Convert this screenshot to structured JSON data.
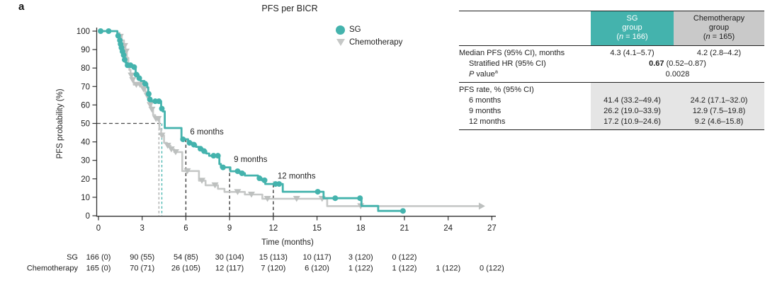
{
  "panel_label": "a",
  "colors": {
    "sg_teal": "#44b3ad",
    "chemo_gray": "#c6c8c7",
    "chemo_censor_gray": "#bdc0bf",
    "sg_header_bg": "#44b3ad",
    "chemo_header_bg": "#c9c9c9",
    "rate_shading_bg": "#e5e5e5",
    "dashed_line": "#3c3c3c",
    "median_dash_gray": "#a5a7a6"
  },
  "chart_data": {
    "type": "line",
    "subtype": "kaplan-meier-step",
    "title": "PFS per BICR",
    "xlabel": "Time (months)",
    "ylabel": "PFS probability (%)",
    "xlim": [
      0,
      27
    ],
    "ylim": [
      0,
      100
    ],
    "xticks": [
      0,
      3,
      6,
      9,
      12,
      15,
      18,
      21,
      24,
      27
    ],
    "yticks": [
      0,
      10,
      20,
      30,
      40,
      50,
      60,
      70,
      80,
      90,
      100
    ],
    "grid": false,
    "legend_position": "top-right-inside",
    "series": [
      {
        "name": "SG",
        "color": "#44b3ad",
        "marker": "circle",
        "censor_color": "#44b3ad",
        "median_months": 4.3,
        "end_arrow": false,
        "steps": [
          [
            0,
            100
          ],
          [
            1.3,
            100
          ],
          [
            1.3,
            97.5
          ],
          [
            1.45,
            97.5
          ],
          [
            1.45,
            95
          ],
          [
            1.5,
            95
          ],
          [
            1.5,
            93
          ],
          [
            1.55,
            93
          ],
          [
            1.55,
            91
          ],
          [
            1.62,
            91
          ],
          [
            1.62,
            89
          ],
          [
            1.7,
            89
          ],
          [
            1.7,
            87
          ],
          [
            1.78,
            87
          ],
          [
            1.78,
            84.5
          ],
          [
            1.85,
            84.5
          ],
          [
            1.85,
            83
          ],
          [
            1.95,
            83
          ],
          [
            1.95,
            81.5
          ],
          [
            2.4,
            81.5
          ],
          [
            2.4,
            80.5
          ],
          [
            2.55,
            80.5
          ],
          [
            2.55,
            76.5
          ],
          [
            2.75,
            76.5
          ],
          [
            2.75,
            74.5
          ],
          [
            2.9,
            74.5
          ],
          [
            2.9,
            73
          ],
          [
            3.15,
            73
          ],
          [
            3.15,
            71.5
          ],
          [
            3.35,
            71.5
          ],
          [
            3.35,
            69.5
          ],
          [
            3.42,
            69.5
          ],
          [
            3.42,
            66
          ],
          [
            3.5,
            66
          ],
          [
            3.5,
            63
          ],
          [
            3.58,
            63
          ],
          [
            3.58,
            62
          ],
          [
            4.3,
            62
          ],
          [
            4.3,
            58
          ],
          [
            4.42,
            58
          ],
          [
            4.42,
            56.5
          ],
          [
            4.55,
            56.5
          ],
          [
            4.55,
            47.5
          ],
          [
            5.7,
            47.5
          ],
          [
            5.7,
            41.4
          ],
          [
            6.15,
            41.4
          ],
          [
            6.15,
            39.5
          ],
          [
            6.45,
            39.5
          ],
          [
            6.45,
            38.5
          ],
          [
            6.7,
            38.5
          ],
          [
            6.7,
            37.3
          ],
          [
            6.9,
            37.3
          ],
          [
            6.9,
            36.3
          ],
          [
            7.15,
            36.3
          ],
          [
            7.15,
            35
          ],
          [
            7.4,
            35
          ],
          [
            7.4,
            33.7
          ],
          [
            7.6,
            33.7
          ],
          [
            7.6,
            32.5
          ],
          [
            8.3,
            32.5
          ],
          [
            8.3,
            28
          ],
          [
            8.4,
            28
          ],
          [
            8.4,
            26.2
          ],
          [
            9.05,
            26.2
          ],
          [
            9.05,
            24.1
          ],
          [
            9.7,
            24.1
          ],
          [
            9.7,
            23
          ],
          [
            10.05,
            23
          ],
          [
            10.05,
            21.8
          ],
          [
            10.95,
            21.8
          ],
          [
            10.95,
            20.3
          ],
          [
            11.2,
            20.3
          ],
          [
            11.2,
            19.2
          ],
          [
            11.45,
            19.2
          ],
          [
            11.45,
            17.2
          ],
          [
            12.65,
            17.2
          ],
          [
            12.65,
            13
          ],
          [
            15.45,
            13
          ],
          [
            15.45,
            9.5
          ],
          [
            18.05,
            9.5
          ],
          [
            18.05,
            5.3
          ],
          [
            19.2,
            5.3
          ],
          [
            19.2,
            2.6
          ],
          [
            20.95,
            2.6
          ]
        ],
        "censor_marks": [
          [
            0.15,
            100
          ],
          [
            0.7,
            100
          ],
          [
            1.35,
            97.5
          ],
          [
            1.47,
            95
          ],
          [
            1.52,
            93
          ],
          [
            1.58,
            91
          ],
          [
            1.65,
            89
          ],
          [
            1.73,
            87
          ],
          [
            1.8,
            84.5
          ],
          [
            2.0,
            81.5
          ],
          [
            2.2,
            81.5
          ],
          [
            2.45,
            80.5
          ],
          [
            2.6,
            76.5
          ],
          [
            2.8,
            74.5
          ],
          [
            3.2,
            71.5
          ],
          [
            3.45,
            66
          ],
          [
            3.53,
            63
          ],
          [
            3.9,
            62
          ],
          [
            4.15,
            62
          ],
          [
            4.35,
            58
          ],
          [
            5.8,
            41.4
          ],
          [
            6.25,
            39.5
          ],
          [
            6.55,
            38.5
          ],
          [
            7.0,
            36.3
          ],
          [
            7.25,
            35
          ],
          [
            7.9,
            32.5
          ],
          [
            8.2,
            32.5
          ],
          [
            8.55,
            26.2
          ],
          [
            9.55,
            24.1
          ],
          [
            9.85,
            23
          ],
          [
            11.05,
            20.3
          ],
          [
            11.4,
            19.2
          ],
          [
            12.15,
            17.2
          ],
          [
            12.4,
            17.2
          ],
          [
            15.05,
            13
          ],
          [
            16.25,
            9.5
          ],
          [
            17.95,
            9.5
          ],
          [
            20.9,
            2.6
          ]
        ]
      },
      {
        "name": "Chemotherapy",
        "color": "#c6c8c7",
        "marker": "triangle-down",
        "censor_color": "#bdc0bf",
        "median_months": 4.2,
        "end_arrow": true,
        "steps": [
          [
            0,
            100
          ],
          [
            1.3,
            100
          ],
          [
            1.3,
            99
          ],
          [
            1.45,
            99
          ],
          [
            1.45,
            97
          ],
          [
            1.6,
            97
          ],
          [
            1.6,
            95
          ],
          [
            1.75,
            95
          ],
          [
            1.75,
            92
          ],
          [
            1.85,
            92
          ],
          [
            1.85,
            89
          ],
          [
            1.95,
            89
          ],
          [
            1.95,
            85.5
          ],
          [
            2.05,
            85.5
          ],
          [
            2.05,
            82
          ],
          [
            2.12,
            82
          ],
          [
            2.12,
            79
          ],
          [
            2.2,
            79
          ],
          [
            2.2,
            76
          ],
          [
            2.3,
            76
          ],
          [
            2.3,
            73.5
          ],
          [
            2.42,
            73.5
          ],
          [
            2.42,
            71
          ],
          [
            2.95,
            71
          ],
          [
            2.95,
            70
          ],
          [
            3.05,
            70
          ],
          [
            3.05,
            68.5
          ],
          [
            3.22,
            68.5
          ],
          [
            3.22,
            67
          ],
          [
            3.32,
            67
          ],
          [
            3.32,
            65
          ],
          [
            3.42,
            65
          ],
          [
            3.42,
            63
          ],
          [
            3.52,
            63
          ],
          [
            3.52,
            60
          ],
          [
            3.62,
            60
          ],
          [
            3.62,
            57.5
          ],
          [
            3.75,
            57.5
          ],
          [
            3.75,
            54.5
          ],
          [
            3.9,
            54.5
          ],
          [
            3.9,
            52.5
          ],
          [
            4.18,
            52.5
          ],
          [
            4.18,
            47
          ],
          [
            4.3,
            47
          ],
          [
            4.3,
            43.5
          ],
          [
            4.5,
            43.5
          ],
          [
            4.5,
            39.5
          ],
          [
            4.7,
            39.5
          ],
          [
            4.7,
            38
          ],
          [
            4.95,
            38
          ],
          [
            4.95,
            36
          ],
          [
            5.2,
            36
          ],
          [
            5.2,
            34.5
          ],
          [
            5.75,
            34.5
          ],
          [
            5.75,
            24.2
          ],
          [
            6.9,
            24.2
          ],
          [
            6.9,
            19
          ],
          [
            7.35,
            19
          ],
          [
            7.35,
            16.5
          ],
          [
            8.2,
            16.5
          ],
          [
            8.2,
            14.6
          ],
          [
            8.65,
            14.6
          ],
          [
            8.65,
            12.9
          ],
          [
            10.05,
            12.9
          ],
          [
            10.05,
            11.5
          ],
          [
            11.25,
            11.5
          ],
          [
            11.25,
            9.2
          ],
          [
            15.7,
            9.2
          ],
          [
            15.7,
            5.2
          ],
          [
            26.2,
            5.2
          ]
        ],
        "censor_marks": [
          [
            1.5,
            97
          ],
          [
            1.8,
            92
          ],
          [
            1.9,
            89
          ],
          [
            2.25,
            76
          ],
          [
            2.35,
            73.5
          ],
          [
            2.6,
            71
          ],
          [
            2.85,
            71
          ],
          [
            3.1,
            68.5
          ],
          [
            3.35,
            65
          ],
          [
            3.55,
            60
          ],
          [
            3.67,
            57.5
          ],
          [
            3.95,
            52.5
          ],
          [
            4.1,
            52.5
          ],
          [
            4.35,
            43.5
          ],
          [
            4.75,
            38
          ],
          [
            5.0,
            36
          ],
          [
            5.3,
            34.5
          ],
          [
            6.1,
            24.2
          ],
          [
            7.1,
            19
          ],
          [
            8.0,
            16.5
          ],
          [
            9.55,
            12.9
          ],
          [
            10.5,
            11.5
          ],
          [
            11.6,
            9.2
          ],
          [
            13.6,
            9.2
          ],
          [
            15.35,
            9.2
          ],
          [
            18.0,
            5.2
          ]
        ]
      }
    ],
    "reference_lines": {
      "horizontal_50pct": {
        "y": 50,
        "x_end_months": 4.35,
        "color": "#4a4a4a"
      },
      "median_verticals": [
        {
          "x": 4.15,
          "color": "#a5a7a6"
        },
        {
          "x": 4.35,
          "color": "#44b3ad"
        }
      ],
      "month_verticals": [
        {
          "x": 6,
          "top_y": 42.5,
          "label": "6 months"
        },
        {
          "x": 9,
          "top_y": 27.5,
          "label": "9 months"
        },
        {
          "x": 12,
          "top_y": 18.5,
          "label": "12 months"
        }
      ]
    },
    "at_risk": {
      "rows": [
        {
          "label": "SG",
          "values": [
            "166 (0)",
            "90 (55)",
            "54 (85)",
            "30 (104)",
            "15 (113)",
            "10 (117)",
            "3 (120)",
            "0 (122)"
          ]
        },
        {
          "label": "Chemotherapy",
          "values": [
            "165 (0)",
            "70 (71)",
            "26 (105)",
            "12 (117)",
            "7 (120)",
            "6 (120)",
            "1 (122)",
            "1 (122)",
            "1 (122)",
            "0 (122)"
          ]
        }
      ]
    }
  },
  "results_table": {
    "header": {
      "col1": {
        "line1": "SG",
        "line2": "group",
        "n_pre": "(",
        "n_char": "n",
        "n_post": " = 166)"
      },
      "col2": {
        "line1": "Chemotherapy",
        "line2": "group",
        "n_pre": "(",
        "n_char": "n",
        "n_post": " = 165)"
      }
    },
    "median_row": {
      "label": "Median PFS (95% CI), months",
      "sg": "4.3 (4.1–5.7)",
      "chemo": "4.2 (2.8–4.2)"
    },
    "hr_row": {
      "label": "Stratified HR (95% CI)",
      "value_bold": "0.67",
      "value_rest": " (0.52–0.87)"
    },
    "pvalue_row": {
      "label_italic": "P",
      "label_rest": " value",
      "label_sup": "a",
      "value": "0.0028"
    },
    "rate_section": {
      "label": "PFS rate, % (95% CI)",
      "rows": [
        {
          "label": "6 months",
          "sg": "41.4 (33.2–49.4)",
          "chemo": "24.2 (17.1–32.0)"
        },
        {
          "label": "9 months",
          "sg": "26.2 (19.0–33.9)",
          "chemo": "12.9 (7.5–19.8)"
        },
        {
          "label": "12 months",
          "sg": "17.2 (10.9–24.6)",
          "chemo": "9.2 (4.6–15.8)"
        }
      ]
    }
  }
}
